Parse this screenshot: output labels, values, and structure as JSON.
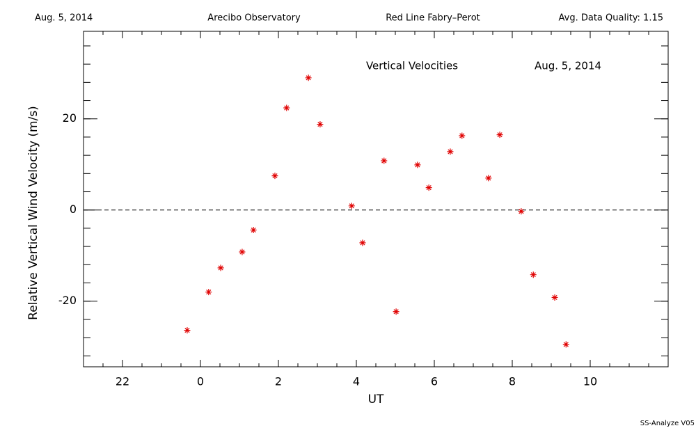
{
  "chart_data": {
    "type": "scatter",
    "header": [
      "Aug. 5, 2014",
      "Arecibo Observatory",
      "Red Line Fabry–Perot",
      "Avg. Data Quality: 1.15"
    ],
    "annotations": [
      "Vertical Velocities",
      "Aug. 5, 2014"
    ],
    "footer": "SS-Analyze V05",
    "x_label": "UT",
    "y_label": "Relative Vertical Wind Velocity (m/s)",
    "xlim": [
      -3,
      12
    ],
    "ylim": [
      -34.4,
      39.2
    ],
    "xticks": [
      {
        "value": -2,
        "label": "22"
      },
      0,
      2,
      4,
      6,
      8,
      10
    ],
    "yticks": [
      -20,
      0,
      20
    ],
    "zero_line": true,
    "series": [
      {
        "color": "#e00000",
        "x": [
          -0.34,
          0.21,
          0.52,
          1.07,
          1.36,
          1.91,
          2.21,
          2.77,
          3.07,
          3.88,
          4.16,
          4.71,
          5.02,
          5.57,
          5.86,
          6.41,
          6.71,
          7.39,
          7.68,
          8.23,
          8.54,
          9.09,
          9.38
        ],
        "values": [
          -26.4,
          -18.0,
          -12.7,
          -9.2,
          -4.4,
          7.5,
          22.4,
          29.0,
          18.8,
          0.9,
          -7.2,
          10.8,
          -22.3,
          9.9,
          4.9,
          12.8,
          16.3,
          7.0,
          16.5,
          -0.3,
          -14.2,
          -19.2,
          -29.5
        ]
      }
    ]
  }
}
